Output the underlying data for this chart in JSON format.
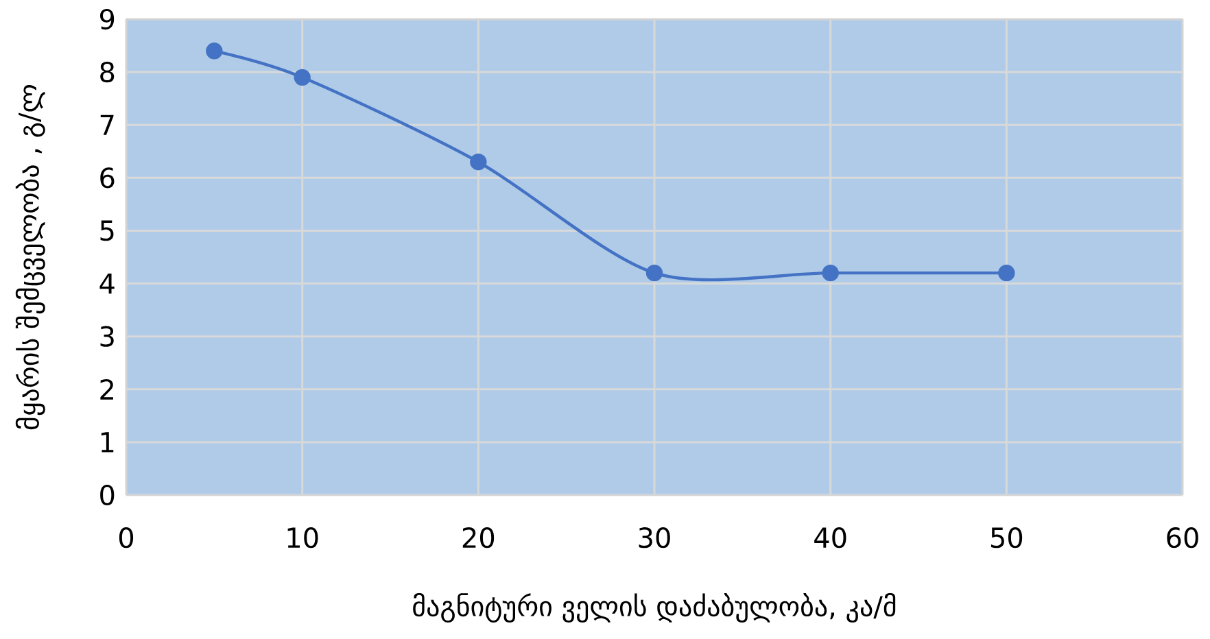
{
  "chart_data": {
    "type": "line",
    "xlabel": "მაგნიტური ველის დაძაბულობა, კა/მ",
    "ylabel": "მყარის შემცველობა , გ/ლ",
    "x": [
      5,
      10,
      20,
      30,
      40,
      50
    ],
    "series": [
      {
        "color": "#4472c4",
        "values": [
          8.4,
          7.9,
          6.3,
          4.2,
          4.2,
          4.2
        ]
      }
    ],
    "xlim": [
      0,
      60
    ],
    "xticks": [
      0,
      10,
      20,
      30,
      40,
      50,
      60
    ],
    "ylim": [
      0,
      9
    ],
    "yticks": [
      0,
      1,
      2,
      3,
      4,
      5,
      6,
      7,
      8,
      9
    ],
    "grid": true,
    "marker": "circle",
    "line_style": "solid"
  }
}
